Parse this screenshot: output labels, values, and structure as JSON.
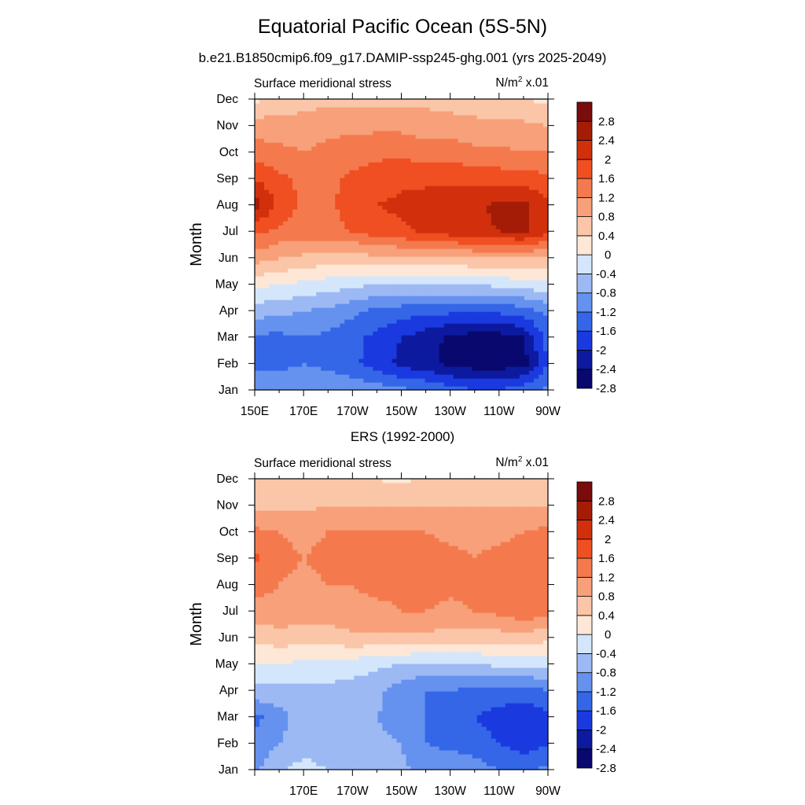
{
  "title": "Equatorial Pacific Ocean (5S-5N)",
  "subtitle": "b.e21.B1850cmip6.f09_g17.DAMIP-ssp245-ghg.001 (yrs 2025-2049)",
  "colors": {
    "levels": [
      "#08086e",
      "#0d1aa0",
      "#1a3ae0",
      "#3566e8",
      "#6592ee",
      "#9db9f4",
      "#d4e6fb",
      "#fde7d6",
      "#fbc5a8",
      "#f7a07a",
      "#f47a4e",
      "#f04f22",
      "#d2300d",
      "#a51c06",
      "#7a0c0c"
    ]
  },
  "chart_data": [
    {
      "type": "heatmap",
      "title": "",
      "left_label": "Surface meridional stress",
      "right_label_base": "N/m",
      "right_label_sup": "2",
      "right_label_tail": " x.01",
      "ylabel": "Month",
      "xlabel": "",
      "x_ticks": [
        "150E",
        "170E",
        "170W",
        "150W",
        "130W",
        "110W",
        "90W"
      ],
      "x": [
        "150E",
        "160E",
        "170E",
        "180",
        "170W",
        "160W",
        "150W",
        "140W",
        "130W",
        "120W",
        "110W",
        "100W",
        "90W"
      ],
      "y_ticks": [
        "Jan",
        "Feb",
        "Mar",
        "Apr",
        "May",
        "Jun",
        "Jul",
        "Aug",
        "Sep",
        "Oct",
        "Nov",
        "Dec"
      ],
      "colorbar_labels": [
        "2.8",
        "2.4",
        "2",
        "1.6",
        "1.2",
        "0.8",
        "0.4",
        "0",
        "-0.4",
        "-0.8",
        "-1.2",
        "-1.6",
        "-2",
        "-2.4",
        "-2.8"
      ],
      "values": [
        [
          -1.2,
          -1.3,
          -1.2,
          -1.3,
          -1.3,
          -1.4,
          -1.5,
          -1.6,
          -1.8,
          -2.0,
          -2.0,
          -1.7,
          -1.5
        ],
        [
          -1.7,
          -1.7,
          -1.6,
          -1.7,
          -1.9,
          -2.2,
          -2.5,
          -2.7,
          -2.9,
          -3.0,
          -3.0,
          -3.0,
          -2.0
        ],
        [
          -1.7,
          -1.7,
          -1.6,
          -1.7,
          -1.9,
          -2.1,
          -2.4,
          -2.6,
          -2.9,
          -3.0,
          -3.0,
          -2.8,
          -1.8
        ],
        [
          -1.0,
          -1.1,
          -1.2,
          -1.3,
          -1.5,
          -1.7,
          -1.8,
          -1.9,
          -1.9,
          -1.9,
          -1.9,
          -1.8,
          -1.5
        ],
        [
          -0.3,
          -0.4,
          -0.5,
          -0.6,
          -0.7,
          -0.8,
          -0.8,
          -0.8,
          -0.8,
          -0.8,
          -0.7,
          -0.6,
          -0.5
        ],
        [
          0.6,
          0.4,
          0.3,
          0.2,
          0.2,
          0.3,
          0.3,
          0.3,
          0.3,
          0.4,
          0.4,
          0.4,
          0.3
        ],
        [
          1.3,
          1.1,
          1.0,
          1.1,
          1.2,
          1.4,
          1.5,
          1.7,
          1.8,
          1.9,
          2.0,
          2.1,
          1.7
        ],
        [
          2.2,
          1.5,
          1.1,
          1.1,
          1.4,
          1.6,
          1.7,
          1.8,
          1.9,
          1.9,
          2.1,
          2.1,
          1.7
        ],
        [
          1.6,
          1.3,
          1.1,
          1.1,
          1.3,
          1.4,
          1.5,
          1.5,
          1.5,
          1.5,
          1.4,
          1.4,
          1.3
        ],
        [
          1.0,
          0.9,
          0.8,
          0.9,
          1.0,
          1.1,
          1.1,
          1.0,
          1.0,
          0.9,
          0.9,
          0.8,
          0.8
        ],
        [
          0.6,
          0.6,
          0.6,
          0.7,
          0.7,
          0.7,
          0.7,
          0.6,
          0.6,
          0.5,
          0.5,
          0.5,
          0.4
        ],
        [
          -0.1,
          0.1,
          0.2,
          0.3,
          0.3,
          0.3,
          0.3,
          0.3,
          0.2,
          0.2,
          0.1,
          0.0,
          -0.1
        ]
      ]
    },
    {
      "type": "heatmap",
      "title": "ERS (1992-2000)",
      "left_label": "Surface meridional stress",
      "right_label_base": "N/m",
      "right_label_sup": "2",
      "right_label_tail": " x.01",
      "ylabel": "Month",
      "xlabel": "",
      "x_ticks": [
        "",
        "170E",
        "170W",
        "150W",
        "130W",
        "110W",
        "90W"
      ],
      "x": [
        "150E",
        "160E",
        "170E",
        "180",
        "170W",
        "160W",
        "150W",
        "140W",
        "130W",
        "120W",
        "110W",
        "100W",
        "90W"
      ],
      "y_ticks": [
        "Jan",
        "Feb",
        "Mar",
        "Apr",
        "May",
        "Jun",
        "Jul",
        "Aug",
        "Sep",
        "Oct",
        "Nov",
        "Dec"
      ],
      "colorbar_labels": [
        "2.8",
        "2.4",
        "2",
        "1.6",
        "1.2",
        "0.8",
        "0.4",
        "0",
        "-0.4",
        "-0.8",
        "-1.2",
        "-1.6",
        "-2",
        "-2.4",
        "-2.8"
      ],
      "values": [
        [
          -1.3,
          -0.8,
          -0.7,
          -0.8,
          -1.0,
          -1.0,
          -1.1,
          -1.4,
          -1.3,
          -1.4,
          -1.6,
          -1.7,
          -1.5
        ],
        [
          -1.5,
          -1.2,
          -0.9,
          -1.0,
          -1.1,
          -1.1,
          -1.2,
          -1.6,
          -1.7,
          -1.8,
          -2.0,
          -2.2,
          -2.0
        ],
        [
          -1.7,
          -1.4,
          -0.9,
          -1.1,
          -1.2,
          -1.2,
          -1.4,
          -1.6,
          -1.8,
          -2.0,
          -2.2,
          -2.3,
          -2.1
        ],
        [
          -0.9,
          -0.9,
          -0.9,
          -0.9,
          -1.0,
          -1.1,
          -1.4,
          -1.6,
          -1.6,
          -1.7,
          -1.7,
          -1.8,
          -1.6
        ],
        [
          -0.4,
          -0.4,
          -0.5,
          -0.5,
          -0.6,
          -0.7,
          -0.8,
          -0.9,
          -0.8,
          -0.8,
          -0.7,
          -0.7,
          -0.6
        ],
        [
          0.1,
          0.2,
          0.2,
          0.2,
          0.3,
          0.3,
          0.3,
          0.3,
          0.2,
          0.2,
          0.2,
          0.2,
          0.1
        ],
        [
          0.7,
          0.7,
          0.6,
          0.6,
          0.7,
          0.7,
          0.8,
          0.8,
          0.7,
          0.8,
          0.9,
          1.1,
          1.0
        ],
        [
          0.9,
          0.8,
          0.7,
          0.8,
          0.8,
          0.9,
          0.9,
          1.0,
          0.9,
          0.9,
          1.0,
          1.2,
          1.1
        ],
        [
          1.3,
          0.9,
          0.8,
          0.9,
          0.9,
          1.0,
          1.0,
          1.0,
          0.9,
          0.8,
          0.9,
          1.0,
          1.1
        ],
        [
          0.9,
          0.8,
          0.7,
          0.8,
          0.8,
          0.8,
          0.8,
          0.8,
          0.7,
          0.7,
          0.7,
          0.8,
          0.9
        ],
        [
          0.3,
          0.3,
          0.3,
          0.4,
          0.4,
          0.4,
          0.4,
          0.4,
          0.4,
          0.4,
          0.4,
          0.4,
          0.4
        ],
        [
          0.0,
          0.0,
          0.1,
          0.1,
          0.1,
          0.0,
          -0.1,
          0.1,
          0.1,
          0.1,
          0.1,
          0.1,
          0.1
        ]
      ]
    }
  ]
}
